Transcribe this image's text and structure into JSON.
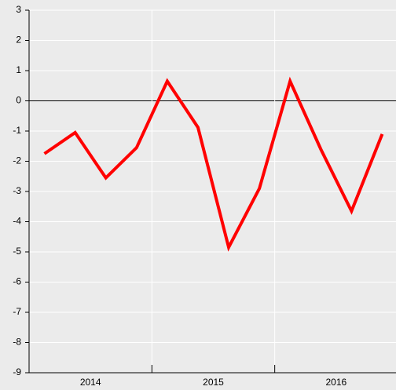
{
  "chart_data": {
    "type": "line",
    "x": [
      2014.125,
      2014.375,
      2014.625,
      2014.875,
      2015.125,
      2015.375,
      2015.625,
      2015.875,
      2016.125,
      2016.375,
      2016.625,
      2016.875
    ],
    "series": [
      {
        "color": "#ff0000",
        "values": [
          -1.75,
          -1.05,
          -2.55,
          -1.55,
          0.65,
          -0.88,
          -4.85,
          -2.9,
          0.65,
          -1.6,
          -3.65,
          -1.1
        ]
      }
    ],
    "xlim": [
      2014,
      2017
    ],
    "xticks": [
      {
        "value": 2014.5,
        "label": "2014"
      },
      {
        "value": 2015.5,
        "label": "2015"
      },
      {
        "value": 2016.5,
        "label": "2016"
      }
    ],
    "xgrid": [
      2015,
      2016
    ],
    "ylim": [
      -9,
      3
    ],
    "yticks": [
      -9,
      -8,
      -7,
      -6,
      -5,
      -4,
      -3,
      -2,
      -1,
      0,
      1,
      2,
      3
    ],
    "grid": true
  }
}
